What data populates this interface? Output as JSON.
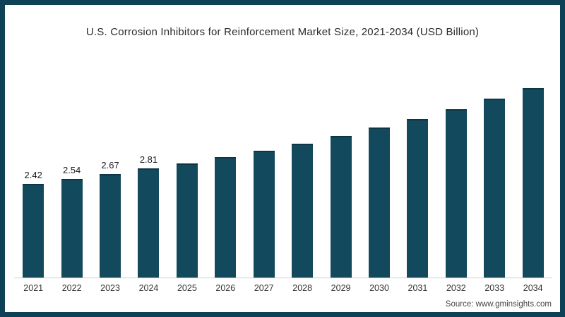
{
  "frame": {
    "border_color": "#0e4155",
    "background": "#ffffff"
  },
  "title": "U.S. Corrosion Inhibitors for Reinforcement Market Size, 2021-2034 (USD Billion)",
  "source": "Source: www.gminsights.com",
  "chart_data": {
    "type": "bar",
    "title": "U.S. Corrosion Inhibitors for Reinforcement Market Size, 2021-2034 (USD Billion)",
    "categories": [
      "2021",
      "2022",
      "2023",
      "2024",
      "2025",
      "2026",
      "2027",
      "2028",
      "2029",
      "2030",
      "2031",
      "2032",
      "2033",
      "2034"
    ],
    "values": [
      2.42,
      2.54,
      2.67,
      2.81,
      2.95,
      3.11,
      3.28,
      3.46,
      3.66,
      3.87,
      4.1,
      4.35,
      4.62,
      4.89
    ],
    "data_labels": [
      "2.42",
      "2.54",
      "2.67",
      "2.81",
      "",
      "",
      "",
      "",
      "",
      "",
      "",
      "",
      "",
      ""
    ],
    "bar_color": "#12495d",
    "axis_line_color": "#cdcdcd",
    "xlabel": "",
    "ylabel": "",
    "ylim": [
      0,
      5.2
    ],
    "grid": false,
    "legend": "none",
    "units": "USD Billion"
  }
}
